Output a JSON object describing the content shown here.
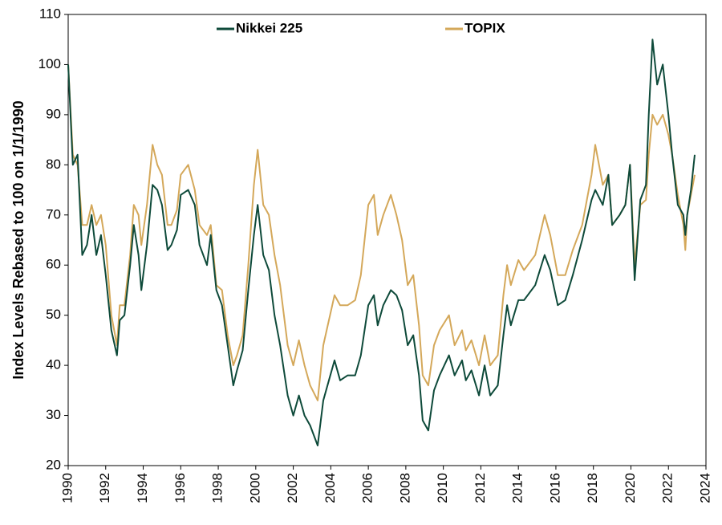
{
  "chart_data": {
    "type": "line",
    "y_label": "Index Levels Rebased to 100 on 1/1/1990",
    "x": [
      1990.0,
      1990.25,
      1990.5,
      1990.75,
      1991.0,
      1991.25,
      1991.5,
      1991.75,
      1992.0,
      1992.3,
      1992.6,
      1992.75,
      1993.0,
      1993.3,
      1993.5,
      1993.75,
      1993.9,
      1994.2,
      1994.5,
      1994.75,
      1995.0,
      1995.3,
      1995.5,
      1995.8,
      1996.0,
      1996.4,
      1996.75,
      1997.0,
      1997.4,
      1997.6,
      1997.9,
      1998.2,
      1998.5,
      1998.8,
      1999.0,
      1999.3,
      1999.6,
      1999.9,
      2000.1,
      2000.4,
      2000.7,
      2001.0,
      2001.3,
      2001.7,
      2002.0,
      2002.3,
      2002.6,
      2002.9,
      2003.3,
      2003.6,
      2003.9,
      2004.2,
      2004.5,
      2004.9,
      2005.3,
      2005.6,
      2006.0,
      2006.3,
      2006.5,
      2006.8,
      2007.2,
      2007.5,
      2007.8,
      2008.1,
      2008.4,
      2008.7,
      2008.9,
      2009.2,
      2009.5,
      2009.8,
      2010.3,
      2010.6,
      2011.0,
      2011.2,
      2011.5,
      2011.9,
      2012.2,
      2012.5,
      2012.9,
      2013.2,
      2013.4,
      2013.6,
      2014.0,
      2014.3,
      2014.9,
      2015.4,
      2015.7,
      2016.1,
      2016.5,
      2016.9,
      2017.4,
      2017.9,
      2018.1,
      2018.5,
      2018.8,
      2019.0,
      2019.4,
      2019.7,
      2019.95,
      2020.2,
      2020.5,
      2020.8,
      2020.95,
      2021.15,
      2021.4,
      2021.7,
      2022.0,
      2022.2,
      2022.5,
      2022.8,
      2022.9,
      2023.0,
      2023.2,
      2023.4
    ],
    "series": [
      {
        "name": "Nikkei 225",
        "color": "#0e4a3a",
        "values": [
          100,
          80,
          82,
          62,
          64,
          70,
          62,
          66,
          58,
          47,
          42,
          49,
          50,
          60,
          68,
          62,
          55,
          64,
          76,
          75,
          72,
          63,
          64,
          67,
          74,
          75,
          72,
          64,
          60,
          66,
          55,
          52,
          44,
          36,
          39,
          43,
          55,
          66,
          72,
          62,
          59,
          50,
          44,
          34,
          30,
          34,
          30,
          28,
          24,
          33,
          37,
          41,
          37,
          38,
          38,
          42,
          52,
          54,
          48,
          52,
          55,
          54,
          51,
          44,
          46,
          38,
          29,
          27,
          35,
          38,
          42,
          38,
          41,
          37,
          39,
          34,
          40,
          34,
          36,
          46,
          52,
          48,
          53,
          53,
          56,
          62,
          59,
          52,
          53,
          58,
          65,
          73,
          75,
          72,
          78,
          68,
          70,
          72,
          80,
          57,
          73,
          76,
          90,
          105,
          96,
          100,
          90,
          82,
          72,
          70,
          66,
          70,
          75,
          82
        ]
      },
      {
        "name": "TOPIX",
        "color": "#d4a85a",
        "values": [
          100,
          82,
          80,
          68,
          68,
          72,
          68,
          70,
          64,
          50,
          44,
          52,
          52,
          62,
          72,
          70,
          64,
          72,
          84,
          80,
          78,
          68,
          68,
          71,
          78,
          80,
          75,
          68,
          66,
          68,
          56,
          55,
          46,
          40,
          42,
          46,
          60,
          76,
          83,
          72,
          70,
          62,
          56,
          44,
          40,
          45,
          40,
          36,
          33,
          44,
          49,
          54,
          52,
          52,
          53,
          58,
          72,
          74,
          66,
          70,
          74,
          70,
          65,
          56,
          58,
          48,
          38,
          36,
          44,
          47,
          50,
          44,
          47,
          43,
          45,
          40,
          46,
          40,
          42,
          54,
          60,
          56,
          61,
          59,
          62,
          70,
          66,
          58,
          58,
          63,
          68,
          78,
          84,
          76,
          78,
          68,
          70,
          72,
          80,
          60,
          72,
          73,
          82,
          90,
          88,
          90,
          86,
          82,
          74,
          68,
          63,
          70,
          74,
          78
        ]
      }
    ],
    "xlim": [
      1990,
      2024
    ],
    "xticks": [
      1990,
      1992,
      1994,
      1996,
      1998,
      2000,
      2002,
      2004,
      2006,
      2008,
      2010,
      2012,
      2014,
      2016,
      2018,
      2020,
      2022,
      2024
    ],
    "ylim": [
      20,
      110
    ],
    "yticks": [
      20,
      30,
      40,
      50,
      60,
      70,
      80,
      90,
      100,
      110
    ],
    "legend": "top"
  }
}
